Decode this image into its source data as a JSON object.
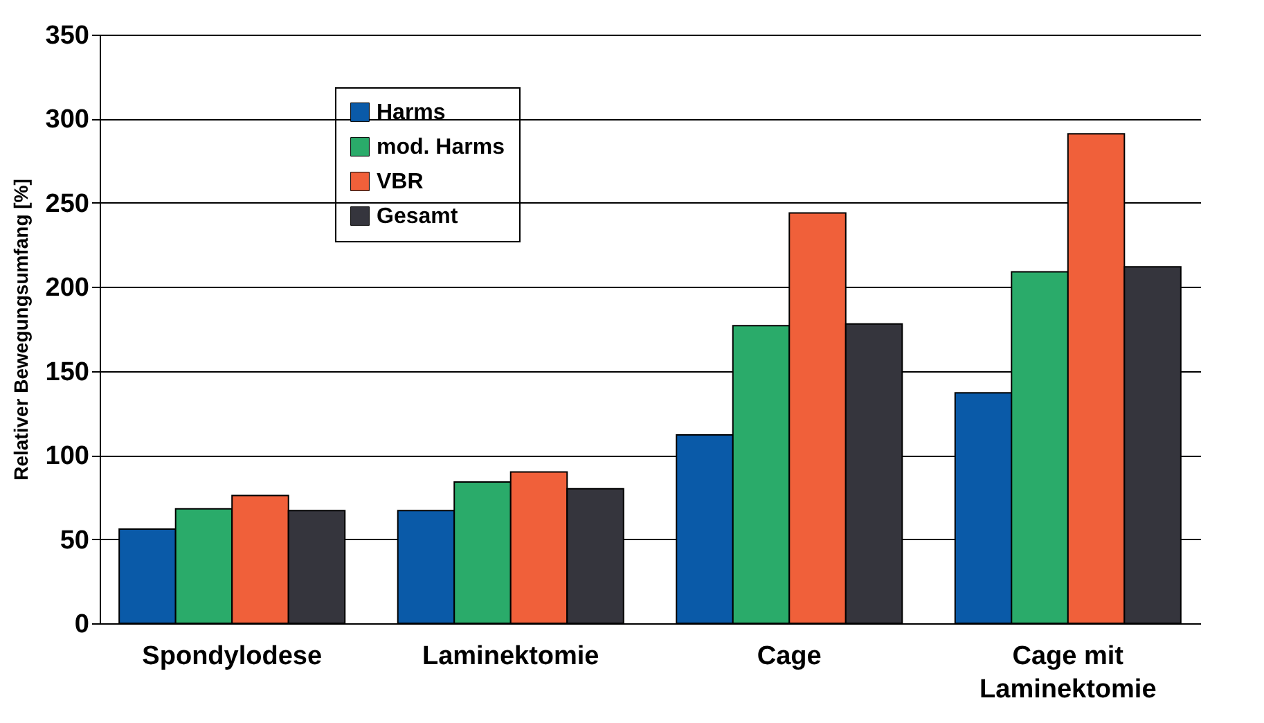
{
  "chart_data": {
    "type": "bar",
    "ylabel": "Relativer Bewegungsumfang [%]",
    "categories": [
      "Spondylodese",
      "Laminektomie",
      "Cage",
      "Cage mit Laminektomie"
    ],
    "series": [
      {
        "name": "Harms",
        "color": "#0a5aa8",
        "values": [
          56,
          67,
          112,
          137
        ]
      },
      {
        "name": "mod. Harms",
        "color": "#2aab6a",
        "values": [
          68,
          84,
          177,
          209
        ]
      },
      {
        "name": "VBR",
        "color": "#f0603a",
        "values": [
          76,
          90,
          244,
          291
        ]
      },
      {
        "name": "Gesamt",
        "color": "#35353d",
        "values": [
          67,
          80,
          178,
          212
        ]
      }
    ],
    "ylim": [
      0,
      350
    ],
    "yticks": [
      0,
      50,
      100,
      150,
      200,
      250,
      300,
      350
    ],
    "grid": "y",
    "legend": "top left"
  }
}
